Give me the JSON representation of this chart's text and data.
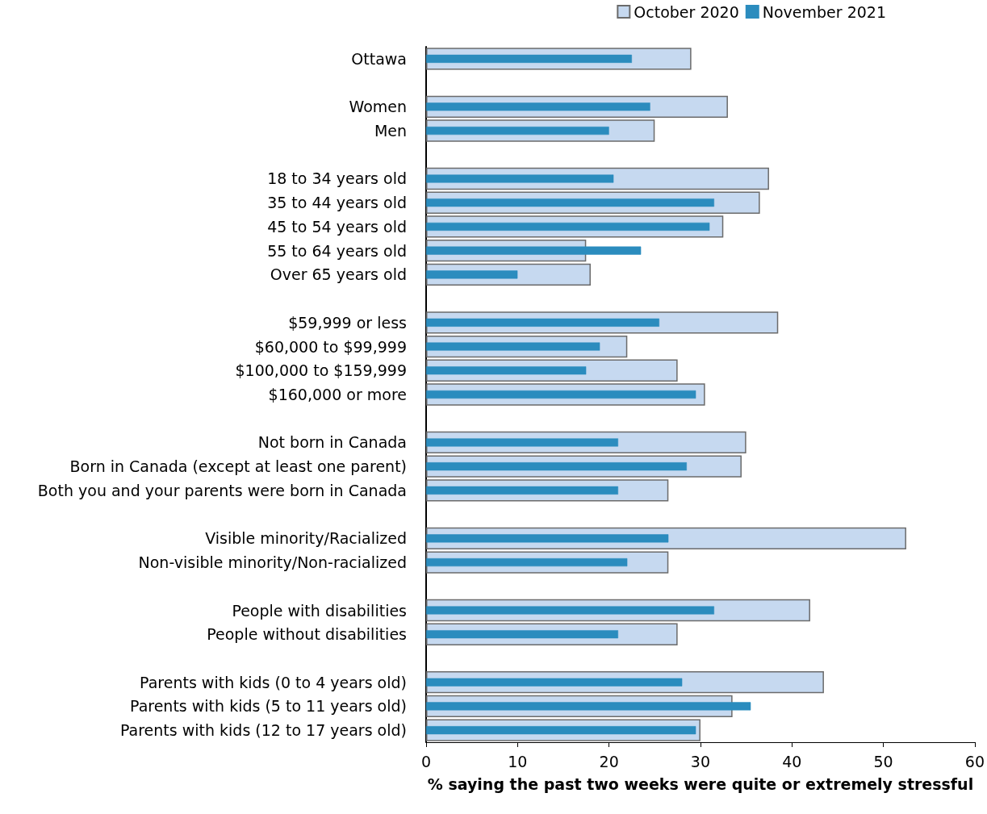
{
  "chart_data": {
    "type": "bar",
    "orientation": "horizontal",
    "xlabel": "% saying the past two weeks were quite or extremely stressful",
    "categories": [
      "Ottawa",
      null,
      "Women",
      "Men",
      null,
      "18 to 34 years old",
      "35 to 44 years old",
      "45 to 54 years old",
      "55 to 64 years old",
      "Over 65 years old",
      null,
      "$59,999 or less",
      "$60,000 to $99,999",
      "$100,000 to $159,999",
      "$160,000 or more",
      null,
      "Not born in Canada",
      "Born in Canada (except at least one parent)",
      "Both you and your parents were born in Canada",
      null,
      "Visible minority/Racialized",
      "Non-visible minority/Non-racialized",
      null,
      "People with disabilities",
      "People without disabilities",
      null,
      "Parents with kids (0 to 4 years old)",
      "Parents with kids (5 to 11 years old)",
      "Parents with kids (12 to 17 years old)"
    ],
    "series": [
      {
        "name": "October 2020",
        "color": "#c6d9f0",
        "values": [
          29,
          null,
          33,
          25,
          null,
          37.5,
          36.5,
          32.5,
          17.5,
          18,
          null,
          38.5,
          22,
          27.5,
          30.5,
          null,
          35,
          34.5,
          26.5,
          null,
          52.5,
          26.5,
          null,
          42,
          27.5,
          null,
          43.5,
          33.5,
          30
        ]
      },
      {
        "name": "November 2021",
        "color": "#2b8cbe",
        "values": [
          22.5,
          null,
          24.5,
          20,
          null,
          20.5,
          31.5,
          31,
          23.5,
          10,
          null,
          25.5,
          19,
          17.5,
          29.5,
          null,
          21,
          28.5,
          21,
          null,
          26.5,
          22,
          null,
          31.5,
          21,
          null,
          28,
          35.5,
          29.5
        ]
      }
    ],
    "xlim": [
      0,
      60
    ],
    "xticks": [
      0,
      10,
      20,
      30,
      40,
      50,
      60
    ],
    "grid": false,
    "legend": "top right"
  }
}
